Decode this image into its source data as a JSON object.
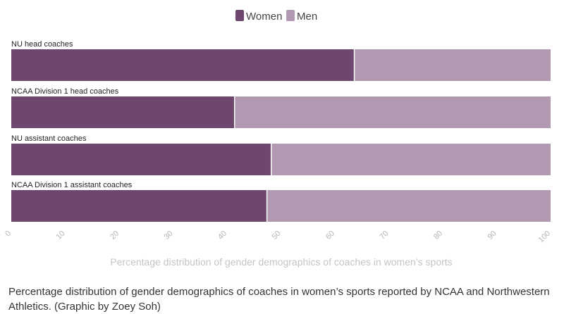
{
  "chart_data": {
    "type": "bar",
    "orientation": "horizontal",
    "stacked": true,
    "categories": [
      "NU head coaches",
      "NCAA Division 1 head coaches",
      "NU assistant coaches",
      "NCAA Division 1 assistant coaches"
    ],
    "series": [
      {
        "name": "Women",
        "color": "#6e476e",
        "values": [
          63.6,
          41.4,
          48.2,
          47.4
        ]
      },
      {
        "name": "Men",
        "color": "#b19ab1",
        "values": [
          36.4,
          58.6,
          51.8,
          52.6
        ]
      }
    ],
    "xlabel": "Percentage distribution of gender demographics of coaches in women’s sports",
    "ylabel": "",
    "xlim": [
      0,
      100
    ],
    "xticks": [
      0,
      10,
      20,
      30,
      40,
      50,
      60,
      70,
      80,
      90,
      100
    ],
    "legend_position": "top-center",
    "grid": false
  },
  "caption": "Percentage distribution of gender demographics of coaches in women’s sports reported by NCAA and Northwestern Athletics. (Graphic by Zoey Soh)"
}
